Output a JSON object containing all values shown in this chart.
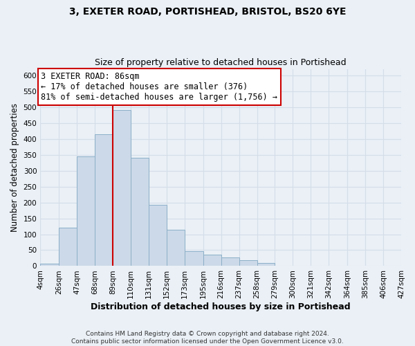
{
  "title": "3, EXETER ROAD, PORTISHEAD, BRISTOL, BS20 6YE",
  "subtitle": "Size of property relative to detached houses in Portishead",
  "xlabel": "Distribution of detached houses by size in Portishead",
  "ylabel": "Number of detached properties",
  "bin_edges": [
    4,
    26,
    47,
    68,
    89,
    110,
    131,
    152,
    173,
    195,
    216,
    237,
    258,
    279,
    300,
    321,
    342,
    364,
    385,
    406,
    427
  ],
  "bin_counts": [
    7,
    120,
    345,
    415,
    490,
    340,
    193,
    115,
    47,
    35,
    28,
    18,
    10,
    0,
    0,
    0,
    0,
    0,
    0,
    0
  ],
  "bar_color": "#ccd9e8",
  "bar_edge_color": "#8bafc8",
  "vline_x": 89,
  "vline_color": "#cc0000",
  "annotation_line1": "3 EXETER ROAD: 86sqm",
  "annotation_line2": "← 17% of detached houses are smaller (376)",
  "annotation_line3": "81% of semi-detached houses are larger (1,756) →",
  "annotation_box_color": "white",
  "annotation_box_edgecolor": "#cc0000",
  "ylim": [
    0,
    620
  ],
  "yticks": [
    0,
    50,
    100,
    150,
    200,
    250,
    300,
    350,
    400,
    450,
    500,
    550,
    600
  ],
  "tick_labels": [
    "4sqm",
    "26sqm",
    "47sqm",
    "68sqm",
    "89sqm",
    "110sqm",
    "131sqm",
    "152sqm",
    "173sqm",
    "195sqm",
    "216sqm",
    "237sqm",
    "258sqm",
    "279sqm",
    "300sqm",
    "321sqm",
    "342sqm",
    "364sqm",
    "385sqm",
    "406sqm",
    "427sqm"
  ],
  "footer_text": "Contains HM Land Registry data © Crown copyright and database right 2024.\nContains public sector information licensed under the Open Government Licence v3.0.",
  "grid_color": "#d4dde8",
  "background_color": "#eaf0f6",
  "plot_bg_color": "#eaf0f6",
  "title_fontsize": 10,
  "subtitle_fontsize": 9,
  "ylabel_fontsize": 8.5,
  "xlabel_fontsize": 9,
  "tick_fontsize": 7.5,
  "footer_fontsize": 6.5
}
